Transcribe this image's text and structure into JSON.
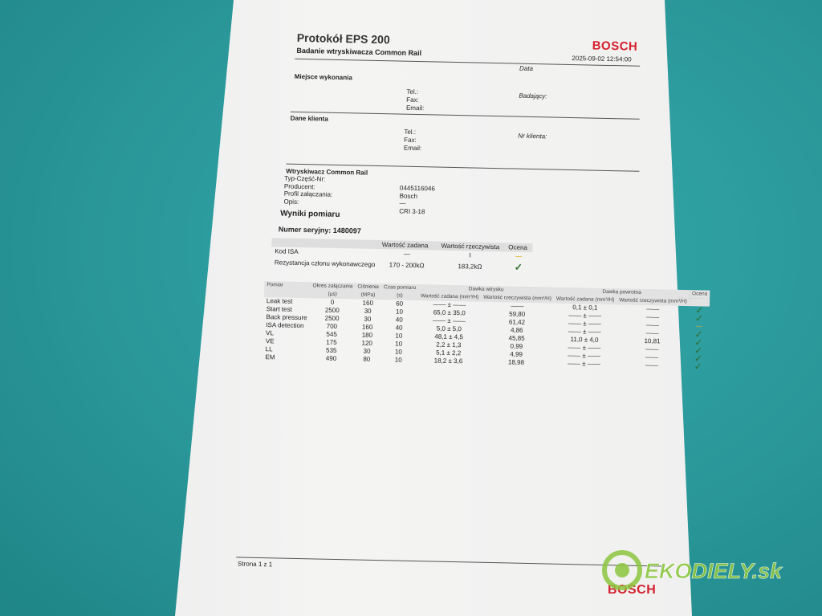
{
  "header": {
    "title": "Protokół EPS 200",
    "subtitle": "Badanie wtryskiwacza Common Rail",
    "brand": "BOSCH",
    "date_label": "Data",
    "date_value": "2025-09-02 12:54:00"
  },
  "place": {
    "heading": "Miejsce wykonania",
    "tel": "Tel.:",
    "fax": "Fax:",
    "email": "Email:",
    "tester": "Badający:"
  },
  "client": {
    "heading": "Dane klienta",
    "tel": "Tel.:",
    "fax": "Fax:",
    "email": "Email:",
    "client_no": "Nr klienta:"
  },
  "injector": {
    "heading": "Wtryskiwacz Common Rail",
    "labels": [
      "Typ-Część-Nr:",
      "Producent:",
      "Profil załączania:",
      "Opis:"
    ],
    "values": [
      "0445116046",
      "Bosch",
      "—",
      "CRI 3-18"
    ]
  },
  "results": {
    "heading": "Wyniki pomiaru",
    "serial": "Numer seryjny: 1480097"
  },
  "summary": {
    "headers": [
      "",
      "Wartość zadana",
      "Wartość rzeczywista",
      "Ocena"
    ],
    "rows": [
      [
        "Kod ISA",
        "—",
        "I",
        "—"
      ],
      [
        "Rezystancja członu wykonawczego",
        "170 - 200kΩ",
        "183,2kΩ",
        "✓"
      ]
    ]
  },
  "measure": {
    "headers": [
      "Pomiar",
      "Okres załączania",
      "Ciśnienie",
      "Czas pomiaru",
      "Dawka wtrysku",
      "Dawka powrotna",
      "Ocena"
    ],
    "sub_headers": [
      "Wartość zadana (mm³/H)",
      "Wartość rzeczywista (mm³/H)",
      "Wartość zadana (mm³/H)",
      "Wartość rzeczywista (mm³/H)"
    ],
    "units": [
      "(µs)",
      "(MPa)",
      "(s)"
    ],
    "rows": [
      [
        "Leak test",
        "0",
        "160",
        "60",
        "—— ± ——",
        "——",
        "0,1 ± 0,1",
        "——",
        "✓"
      ],
      [
        "Start test",
        "2500",
        "30",
        "10",
        "65,0 ± 35,0",
        "59,80",
        "—— ± ——",
        "——",
        "✓"
      ],
      [
        "Back pressure",
        "2500",
        "30",
        "40",
        "—— ± ——",
        "61,42",
        "—— ± ——",
        "——",
        "—"
      ],
      [
        "ISA detection",
        "700",
        "160",
        "40",
        "5,0 ± 5,0",
        "4,86",
        "—— ± ——",
        "——",
        "✓"
      ],
      [
        "VL",
        "545",
        "180",
        "10",
        "48,1 ± 4,5",
        "45,85",
        "11,0 ± 4,0",
        "10,81",
        "✓"
      ],
      [
        "VE",
        "175",
        "120",
        "10",
        "2,2 ± 1,3",
        "0,99",
        "—— ± ——",
        "——",
        "✓"
      ],
      [
        "LL",
        "535",
        "30",
        "10",
        "5,1 ± 2,2",
        "4,99",
        "—— ± ——",
        "——",
        "✓"
      ],
      [
        "EM",
        "490",
        "80",
        "10",
        "18,2 ± 3,6",
        "18,98",
        "—— ± ——",
        "——",
        "✓"
      ]
    ]
  },
  "footer": {
    "page": "Strona 1 z 1",
    "brand": "BOSCH"
  },
  "watermark": {
    "text": "EKODIELY.sk"
  },
  "colors": {
    "background": "#2b9c9e",
    "bosch_red": "#d4202c",
    "ok_green": "#2d6b2d",
    "warn_yellow": "#e0b020",
    "watermark_green": "#8cc63f"
  }
}
